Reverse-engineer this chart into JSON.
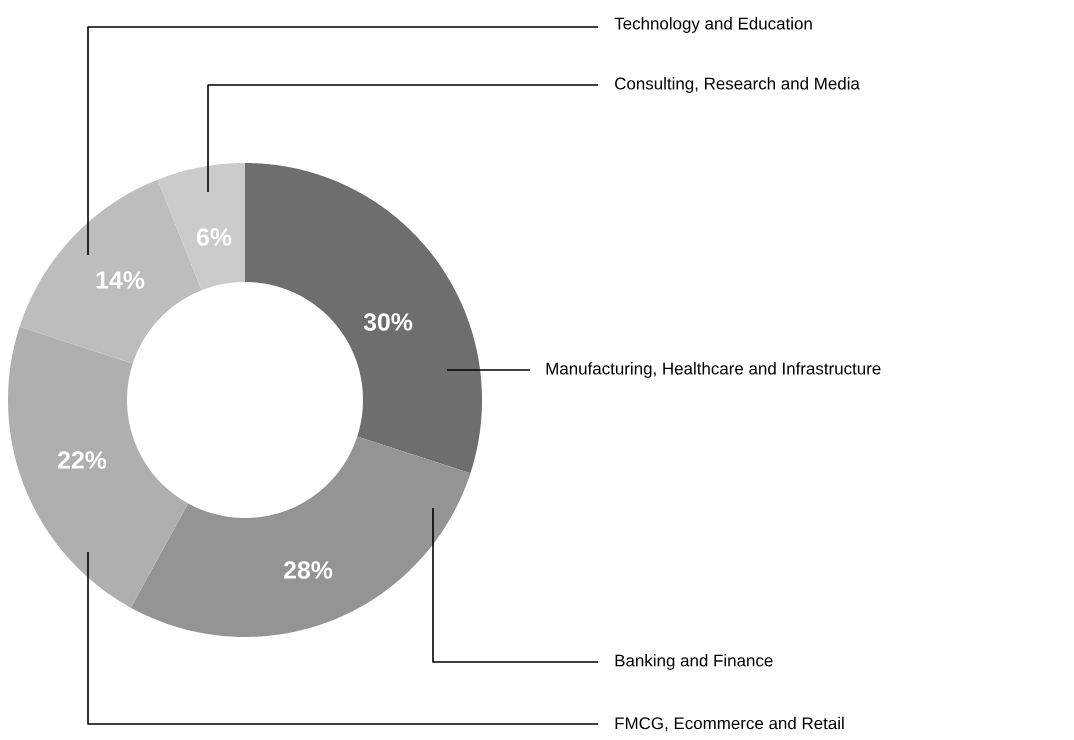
{
  "chart_data": {
    "type": "donut",
    "categories": [
      "Manufacturing, Healthcare and Infrastructure",
      "Banking and Finance",
      "FMCG, Ecommerce and Retail",
      "Technology and Education",
      "Consulting, Research and Media"
    ],
    "values": [
      30,
      28,
      22,
      14,
      6
    ],
    "colors": [
      "#6d6e70",
      "#939496",
      "#aeafb1",
      "#bcbdbf",
      "#cacbcd"
    ],
    "value_labels": [
      "30%",
      "28%",
      "22%",
      "14%",
      "6%"
    ]
  }
}
